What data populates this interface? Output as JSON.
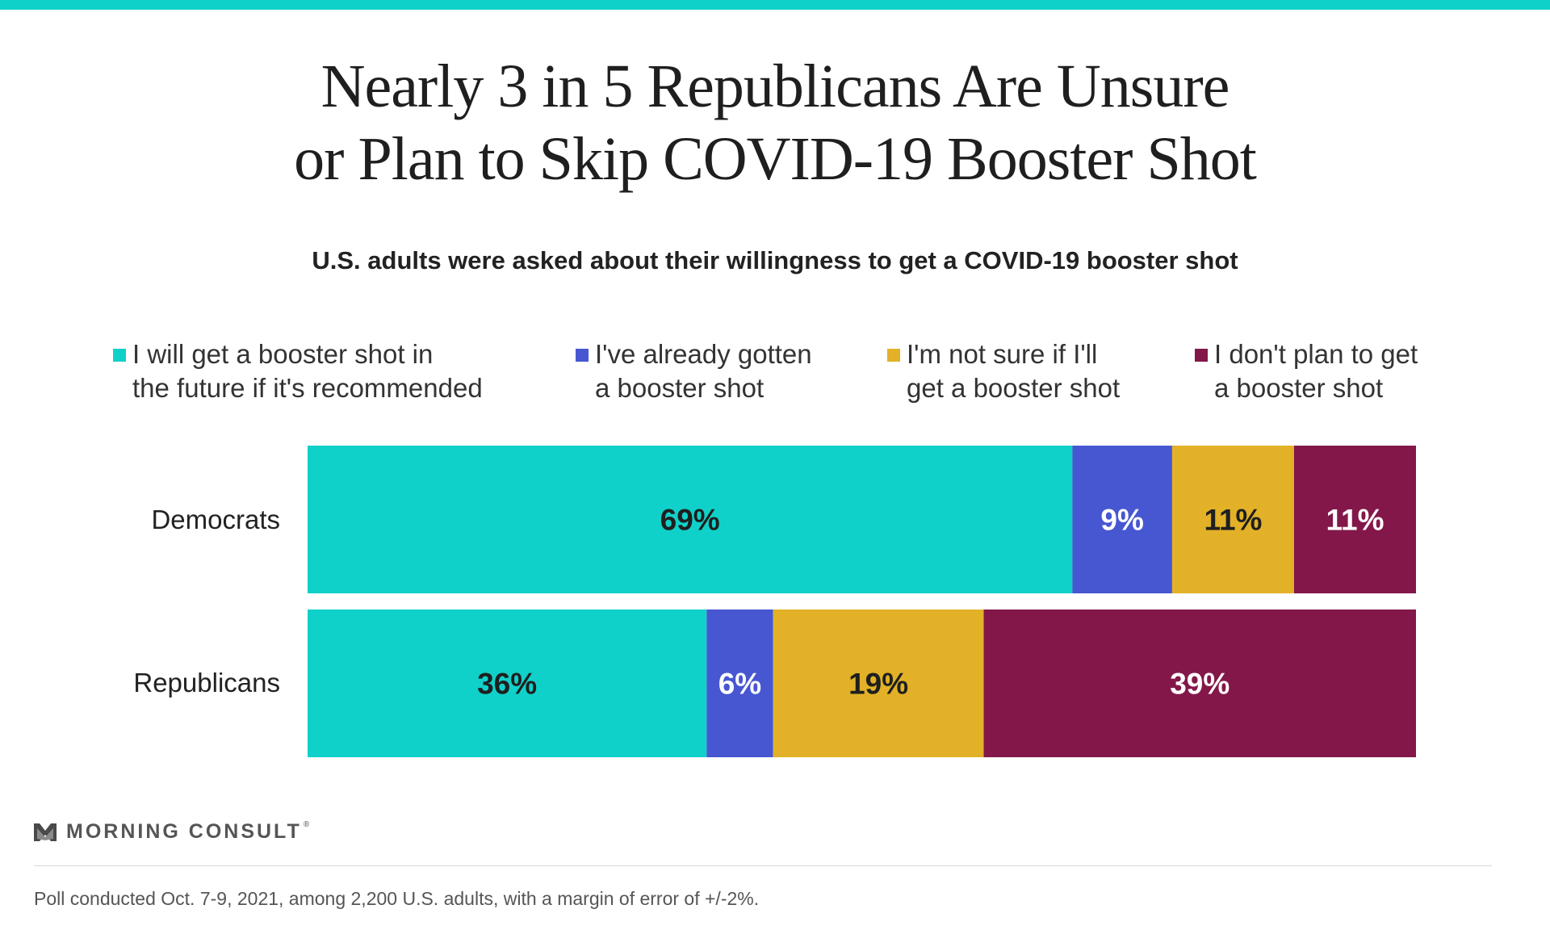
{
  "title_lines": [
    "Nearly 3 in 5 Republicans Are Unsure",
    "or Plan to Skip COVID-19 Booster Shot"
  ],
  "subtitle": "U.S. adults were asked about their willingness to get a COVID-19 booster shot",
  "legend": [
    {
      "line1": "I will get a booster shot in",
      "line2": "the future if it's recommended",
      "color": "#10d1c9"
    },
    {
      "line1": "I've already gotten",
      "line2": "a booster shot",
      "color": "#4757d1"
    },
    {
      "line1": "I'm not sure if I'll",
      "line2": "get a booster shot",
      "color": "#e2b127"
    },
    {
      "line1": "I don't plan to get",
      "line2": "a booster shot",
      "color": "#83174a"
    }
  ],
  "chart_data": {
    "type": "bar",
    "orientation": "horizontal",
    "stacked": true,
    "categories": [
      "Democrats",
      "Republicans"
    ],
    "series": [
      {
        "name": "I will get a booster shot in the future if it's recommended",
        "values": [
          69,
          36
        ],
        "color": "#10d1c9",
        "label_color": "#1f1f1f"
      },
      {
        "name": "I've already gotten a booster shot",
        "values": [
          9,
          6
        ],
        "color": "#4757d1",
        "label_color": "#ffffff"
      },
      {
        "name": "I'm not sure if I'll get a booster shot",
        "values": [
          11,
          19
        ],
        "color": "#e2b127",
        "label_color": "#1f1f1f"
      },
      {
        "name": "I don't plan to get a booster shot",
        "values": [
          11,
          39
        ],
        "color": "#83174a",
        "label_color": "#ffffff"
      }
    ],
    "value_suffix": "%",
    "xlim": [
      0,
      100
    ],
    "grid": false,
    "legend_position": "top"
  },
  "brand": {
    "name": "MORNING CONSULT",
    "reg": "®"
  },
  "footnote": "Poll conducted Oct. 7-9, 2021, among 2,200 U.S. adults, with a margin of error of +/-2%."
}
